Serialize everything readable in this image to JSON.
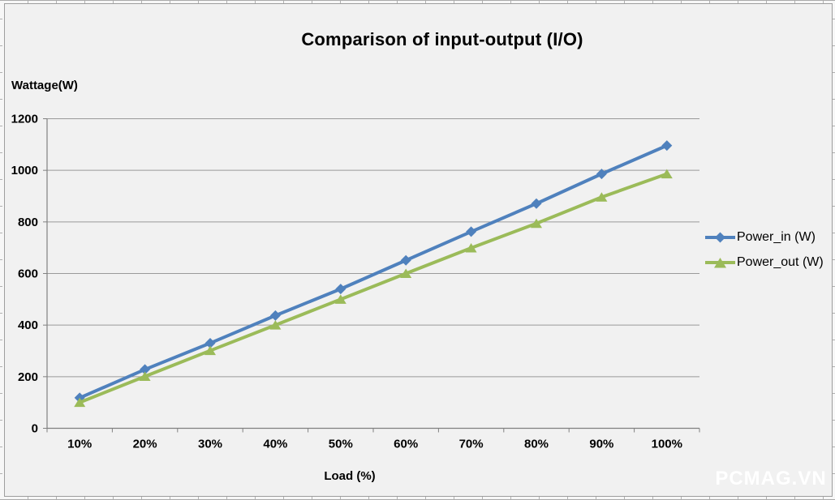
{
  "watermark": "PCMAG.VN",
  "colors": {
    "chart_background": "#f1f1f1",
    "page_background": "#f7f7f7",
    "watermark_text": "#ffffff",
    "text": "#000000"
  },
  "chart_data": {
    "type": "line",
    "title": "Comparison of input-output (I/O)",
    "xlabel": "Load (%)",
    "ylabel": "Wattage(W)",
    "categories": [
      "10%",
      "20%",
      "30%",
      "40%",
      "50%",
      "60%",
      "70%",
      "80%",
      "90%",
      "100%"
    ],
    "series": [
      {
        "name": "Power_in (W)",
        "marker": "diamond",
        "color": "#4F81BD",
        "values": [
          118,
          228,
          330,
          437,
          540,
          651,
          762,
          871,
          986,
          1096
        ]
      },
      {
        "name": "Power_out (W)",
        "marker": "triangle",
        "color": "#9BBB59",
        "values": [
          100,
          201,
          301,
          400,
          500,
          600,
          699,
          794,
          896,
          986
        ]
      }
    ],
    "ylim": [
      0,
      1200
    ],
    "y_ticks": [
      0,
      200,
      400,
      600,
      800,
      1000,
      1200
    ],
    "grid": true,
    "legend_position": "right",
    "gridline_color": "#9a9a9a",
    "axis_color": "#808080"
  }
}
